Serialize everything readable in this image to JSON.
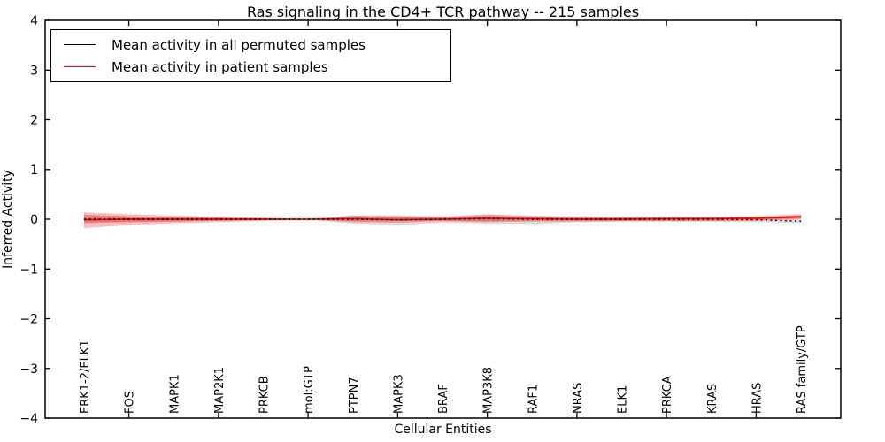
{
  "title": "Ras signaling in the CD4+ TCR pathway -- 215 samples",
  "axes": {
    "xlabel": "Cellular Entities",
    "ylabel": "Inferred Activity"
  },
  "legend": [
    {
      "label": "Mean activity in all permuted samples",
      "color": "#000000"
    },
    {
      "label": "Mean activity in patient samples",
      "color": "#ff0000"
    }
  ],
  "chart_data": {
    "type": "line",
    "title": "Ras signaling in the CD4+ TCR pathway -- 215 samples",
    "xlabel": "Cellular Entities",
    "ylabel": "Inferred Activity",
    "ylim": [
      -4,
      4
    ],
    "yticks": [
      4,
      3,
      2,
      1,
      0,
      -1,
      -2,
      -3,
      -4
    ],
    "ytick_labels": [
      "4",
      "3",
      "2",
      "1",
      "0",
      "−1",
      "−2",
      "−3",
      "−4"
    ],
    "categories": [
      "ERK1-2/ELK1",
      "FOS",
      "MAPK1",
      "MAP2K1",
      "PRKCB",
      "mol:GTP",
      "PTPN7",
      "MAPK3",
      "BRAF",
      "MAP3K8",
      "RAF1",
      "NRAS",
      "ELK1",
      "PRKCA",
      "KRAS",
      "HRAS",
      "RAS family/GTP"
    ],
    "xtick_mark_indices": [
      1,
      3,
      5,
      7,
      9,
      11,
      13,
      15
    ],
    "grid": false,
    "legend_position": "upper left",
    "series": [
      {
        "name": "Mean activity in patient samples",
        "color": "#ff0000",
        "style": "solid",
        "values": [
          -0.01,
          0.0,
          0.0,
          0.0,
          0.0,
          0.0,
          0.01,
          -0.01,
          0.0,
          0.02,
          0.01,
          0.0,
          0.0,
          0.01,
          0.01,
          0.02,
          0.05
        ]
      },
      {
        "name": "Mean activity in all permuted samples",
        "color": "#000000",
        "style": "dotted",
        "values": [
          0.0,
          0.0,
          0.0,
          0.0,
          0.0,
          0.0,
          0.0,
          -0.01,
          0.0,
          0.01,
          0.0,
          0.0,
          0.0,
          0.0,
          0.0,
          -0.01,
          -0.04
        ]
      }
    ],
    "bands": [
      {
        "name": "permuted-samples-range",
        "color": "rgba(130,130,130,0.28)",
        "upper": [
          0.06,
          0.05,
          0.04,
          0.03,
          0.02,
          0.01,
          0.08,
          0.08,
          0.06,
          0.09,
          0.07,
          0.06,
          0.05,
          0.05,
          0.05,
          0.05,
          0.06
        ],
        "lower": [
          -0.06,
          -0.05,
          -0.04,
          -0.03,
          -0.02,
          -0.01,
          -0.09,
          -0.12,
          -0.07,
          -0.09,
          -0.1,
          -0.06,
          -0.05,
          -0.05,
          -0.05,
          -0.06,
          -0.08
        ]
      },
      {
        "name": "patient-samples-outer-band",
        "color": "rgba(222,45,45,0.30)",
        "upper": [
          0.14,
          0.1,
          0.07,
          0.05,
          0.03,
          0.0,
          0.07,
          0.06,
          0.04,
          0.1,
          0.06,
          0.05,
          0.04,
          0.05,
          0.05,
          0.06,
          0.1
        ],
        "lower": [
          -0.18,
          -0.12,
          -0.08,
          -0.06,
          -0.03,
          -0.01,
          -0.06,
          -0.07,
          -0.04,
          -0.06,
          -0.05,
          -0.05,
          -0.04,
          -0.04,
          -0.04,
          -0.03,
          0.0
        ]
      },
      {
        "name": "patient-samples-inner-band",
        "color": "rgba(222,45,45,0.38)",
        "upper": [
          0.09,
          0.06,
          0.04,
          0.03,
          0.02,
          0.0,
          0.04,
          0.04,
          0.03,
          0.06,
          0.04,
          0.03,
          0.03,
          0.03,
          0.03,
          0.04,
          0.08
        ],
        "lower": [
          -0.08,
          -0.06,
          -0.05,
          -0.03,
          -0.02,
          0.0,
          -0.04,
          -0.04,
          -0.03,
          -0.04,
          -0.03,
          -0.03,
          -0.03,
          -0.03,
          -0.03,
          -0.02,
          0.02
        ]
      }
    ]
  }
}
